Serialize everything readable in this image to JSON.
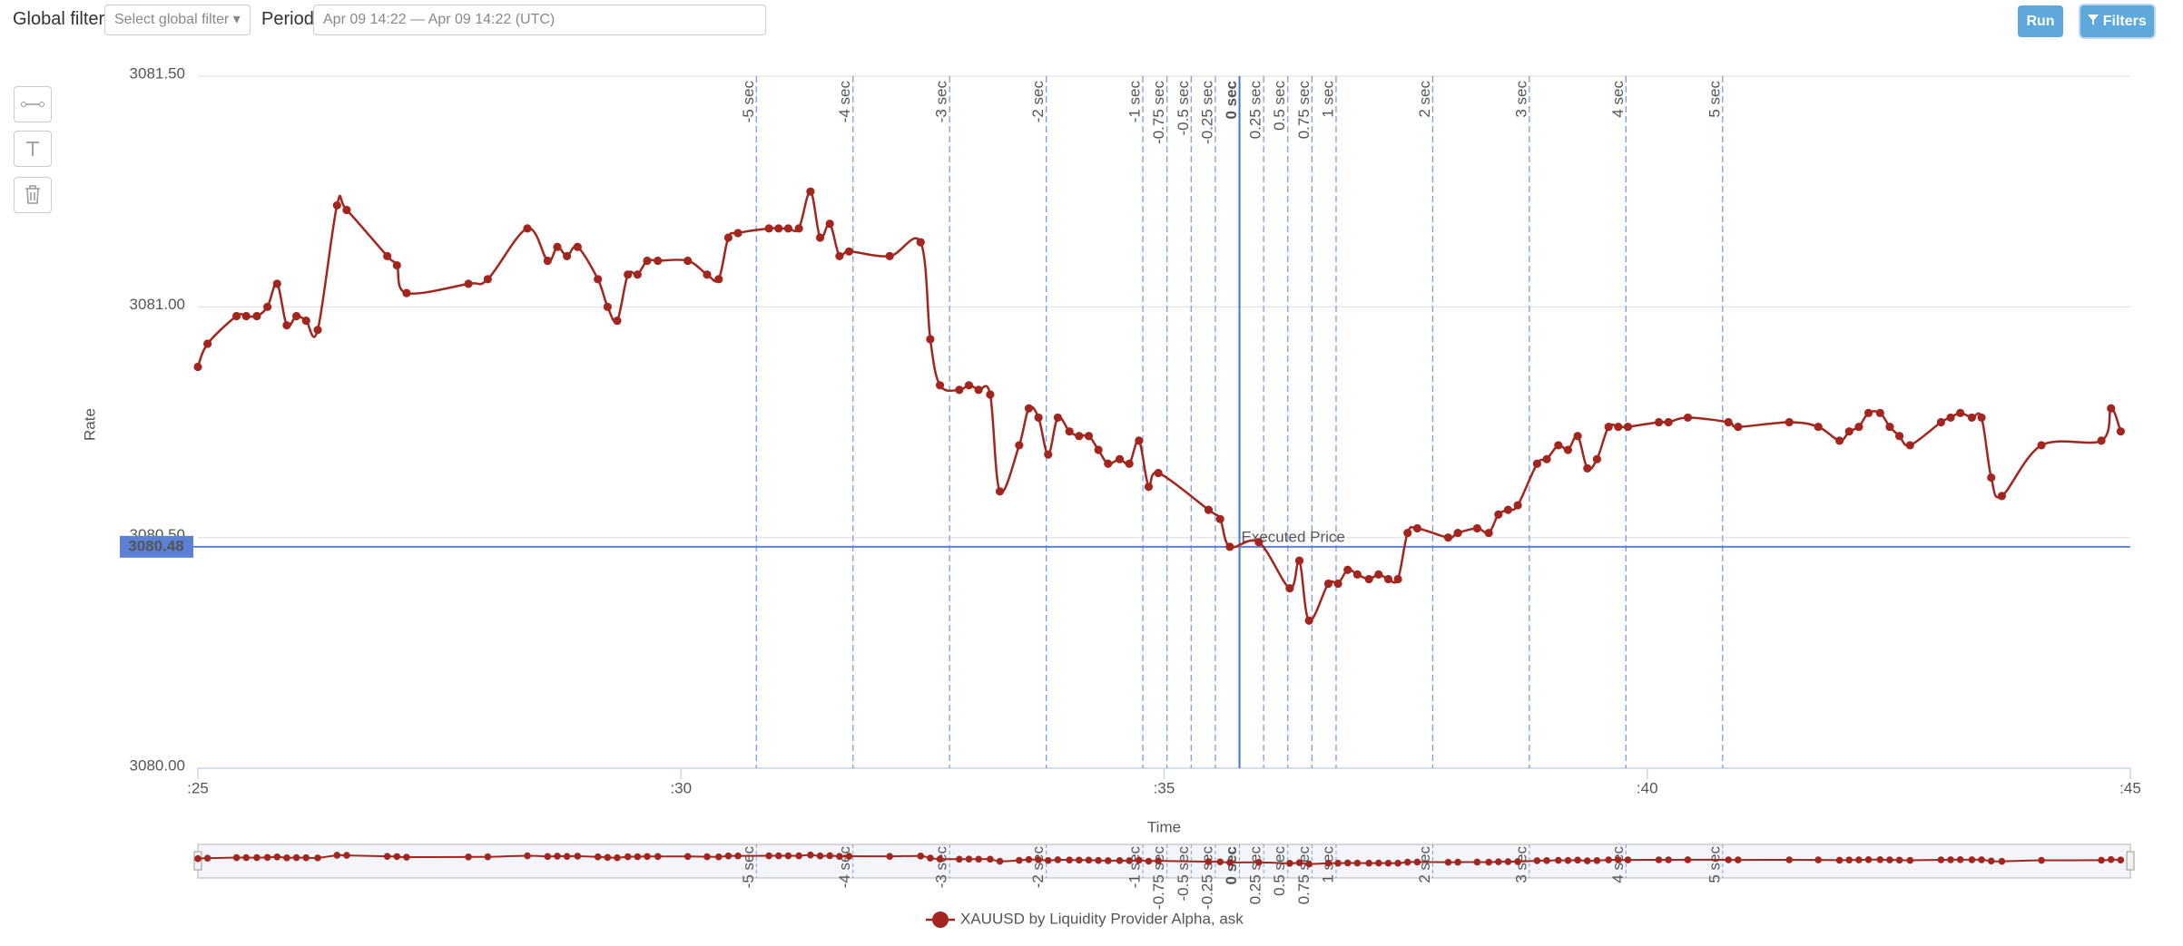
{
  "toolbar": {
    "global_filter_label": "Global filter",
    "global_filter_placeholder": "Select global filter",
    "period_label": "Period",
    "period_value": "Apr 09 14:22 — Apr 09 14:22 (UTC)",
    "run": "Run",
    "filters": "Filters"
  },
  "chart_data": {
    "type": "line",
    "y_label": "Rate",
    "x_label": "Time",
    "x": [
      25.0,
      25.1,
      25.4,
      25.5,
      25.61,
      25.72,
      25.82,
      25.92,
      26.02,
      26.12,
      26.24,
      26.44,
      26.54,
      26.96,
      27.06,
      27.16,
      27.8,
      28.0,
      28.41,
      28.62,
      28.72,
      28.82,
      28.93,
      29.14,
      29.24,
      29.34,
      29.45,
      29.55,
      29.65,
      29.76,
      30.07,
      30.27,
      30.39,
      30.49,
      30.59,
      30.91,
      31.01,
      31.11,
      31.22,
      31.34,
      31.44,
      31.54,
      31.64,
      31.74,
      32.16,
      32.48,
      32.58,
      32.68,
      32.88,
      32.98,
      33.08,
      33.2,
      33.3,
      33.5,
      33.6,
      33.7,
      33.8,
      33.9,
      34.02,
      34.12,
      34.22,
      34.32,
      34.42,
      34.54,
      34.64,
      34.74,
      34.84,
      34.94,
      35.46,
      35.58,
      35.68,
      35.98,
      36.3,
      36.4,
      36.5,
      36.7,
      36.8,
      36.9,
      37.0,
      37.12,
      37.22,
      37.32,
      37.42,
      37.52,
      37.62,
      37.94,
      38.04,
      38.24,
      38.36,
      38.46,
      38.56,
      38.66,
      38.86,
      38.96,
      39.08,
      39.18,
      39.28,
      39.38,
      39.48,
      39.6,
      39.7,
      39.8,
      40.12,
      40.22,
      40.42,
      40.84,
      40.94,
      41.47,
      41.77,
      41.99,
      42.09,
      42.19,
      42.29,
      42.41,
      42.51,
      42.61,
      42.72,
      43.04,
      43.14,
      43.24,
      43.36,
      43.46,
      43.56,
      43.67,
      44.08,
      44.7,
      44.8,
      44.9
    ],
    "series": [
      {
        "name": "XAUUSD by Liquidity Provider Alpha, ask",
        "color": "#a3261e",
        "values": [
          3080.87,
          3080.92,
          3080.98,
          3080.98,
          3080.98,
          3081.0,
          3081.05,
          3080.96,
          3080.98,
          3080.97,
          3080.95,
          3081.22,
          3081.21,
          3081.11,
          3081.09,
          3081.03,
          3081.05,
          3081.06,
          3081.17,
          3081.1,
          3081.13,
          3081.11,
          3081.13,
          3081.06,
          3081.0,
          3080.97,
          3081.07,
          3081.07,
          3081.1,
          3081.1,
          3081.1,
          3081.07,
          3081.06,
          3081.15,
          3081.16,
          3081.17,
          3081.17,
          3081.17,
          3081.17,
          3081.25,
          3081.15,
          3081.18,
          3081.11,
          3081.12,
          3081.11,
          3081.14,
          3080.93,
          3080.83,
          3080.82,
          3080.83,
          3080.82,
          3080.81,
          3080.6,
          3080.7,
          3080.78,
          3080.76,
          3080.68,
          3080.76,
          3080.73,
          3080.72,
          3080.72,
          3080.69,
          3080.66,
          3080.67,
          3080.66,
          3080.71,
          3080.61,
          3080.64,
          3080.56,
          3080.54,
          3080.48,
          3080.49,
          3080.39,
          3080.45,
          3080.32,
          3080.4,
          3080.4,
          3080.43,
          3080.42,
          3080.41,
          3080.42,
          3080.41,
          3080.41,
          3080.51,
          3080.52,
          3080.5,
          3080.51,
          3080.52,
          3080.51,
          3080.55,
          3080.56,
          3080.57,
          3080.66,
          3080.67,
          3080.7,
          3080.69,
          3080.72,
          3080.65,
          3080.67,
          3080.74,
          3080.74,
          3080.74,
          3080.75,
          3080.75,
          3080.76,
          3080.75,
          3080.74,
          3080.75,
          3080.74,
          3080.71,
          3080.73,
          3080.74,
          3080.77,
          3080.77,
          3080.74,
          3080.72,
          3080.7,
          3080.75,
          3080.76,
          3080.77,
          3080.76,
          3080.76,
          3080.63,
          3080.59,
          3080.7,
          3080.71,
          3080.78,
          3080.73
        ]
      }
    ],
    "xlim": [
      25,
      45
    ],
    "ylim": [
      3080,
      3081.5
    ],
    "xticks": [
      {
        "value": 25,
        "label": ":25"
      },
      {
        "value": 30,
        "label": ":30"
      },
      {
        "value": 35,
        "label": ":35"
      },
      {
        "value": 40,
        "label": ":40"
      },
      {
        "value": 45,
        "label": ":45"
      }
    ],
    "yticks": [
      {
        "value": 3080,
        "label": "3080.00"
      },
      {
        "value": 3080.5,
        "label": "3080.50"
      },
      {
        "value": 3081,
        "label": "3081.00"
      },
      {
        "value": 3081.5,
        "label": "3081.50"
      }
    ],
    "grid": true,
    "legend": "bottom",
    "markers": [
      {
        "value": 30.78,
        "label": "-5 sec"
      },
      {
        "value": 31.78,
        "label": "-4 sec"
      },
      {
        "value": 32.78,
        "label": "-3 sec"
      },
      {
        "value": 33.78,
        "label": "-2 sec"
      },
      {
        "value": 34.78,
        "label": "-1 sec"
      },
      {
        "value": 35.03,
        "label": "-0.75 sec"
      },
      {
        "value": 35.28,
        "label": "-0.5 sec"
      },
      {
        "value": 35.53,
        "label": "-0.25 sec"
      },
      {
        "value": 35.78,
        "label": "0 sec",
        "bold": true
      },
      {
        "value": 36.03,
        "label": "0.25 sec"
      },
      {
        "value": 36.28,
        "label": "0.5 sec"
      },
      {
        "value": 36.53,
        "label": "0.75 sec"
      },
      {
        "value": 36.78,
        "label": "1 sec"
      },
      {
        "value": 37.78,
        "label": "2 sec"
      },
      {
        "value": 38.78,
        "label": "3 sec"
      },
      {
        "value": 39.78,
        "label": "4 sec"
      },
      {
        "value": 40.78,
        "label": "5 sec"
      }
    ],
    "executed_price": {
      "label": "Executed Price",
      "value": 3080.48
    }
  }
}
